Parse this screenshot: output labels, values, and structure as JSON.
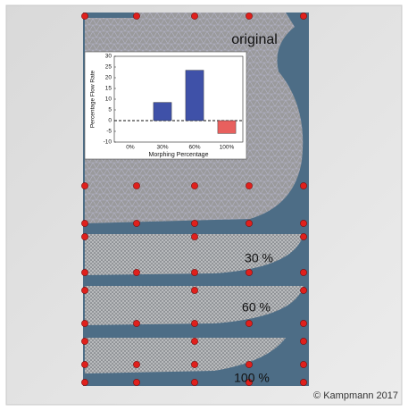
{
  "chart_data": {
    "type": "bar",
    "categories": [
      "0%",
      "30%",
      "60%",
      "100%"
    ],
    "values": [
      0,
      8.5,
      23.5,
      -6
    ],
    "colors": [
      "#3f51a8",
      "#3f51a8",
      "#3f51a8",
      "#e8605e"
    ],
    "xlabel": "Morphing Percentage",
    "ylabel": "Percentage Flow Rate",
    "ylim": [
      -10,
      30
    ],
    "yticks": [
      -10,
      -5,
      0,
      5,
      10,
      15,
      20,
      25,
      30
    ]
  },
  "figure": {
    "labels": [
      "original",
      "30 %",
      "60 %",
      "100 %"
    ],
    "credit": "© Kampmann 2017"
  }
}
